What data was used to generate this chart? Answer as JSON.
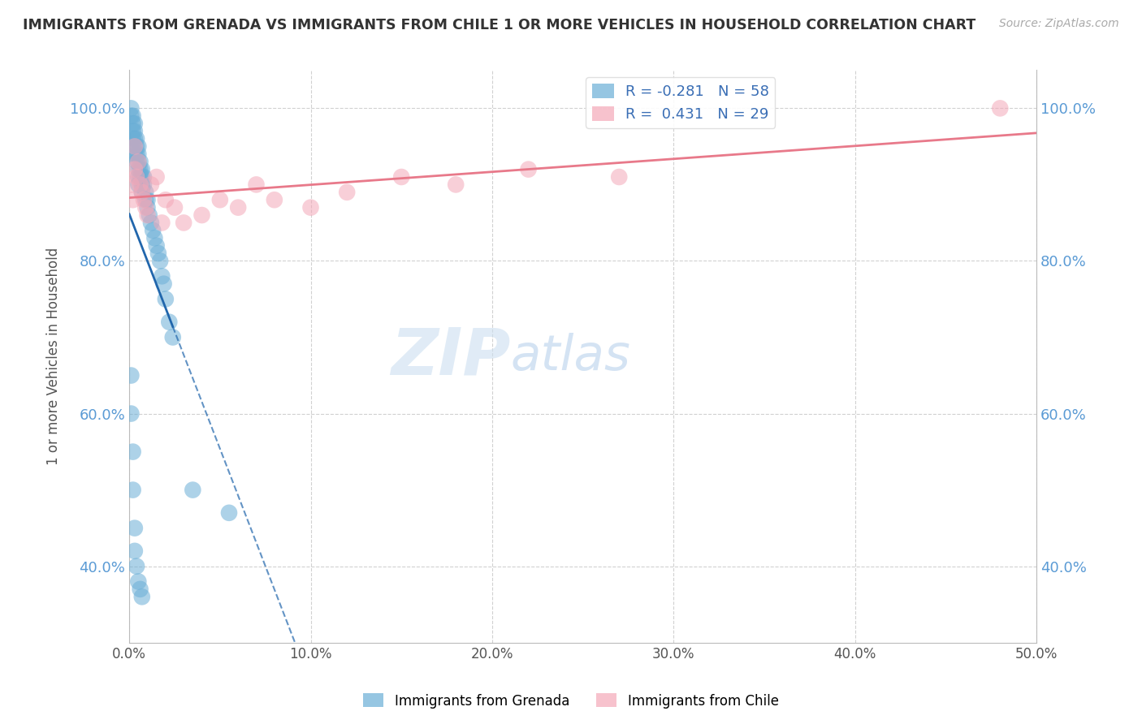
{
  "title": "IMMIGRANTS FROM GRENADA VS IMMIGRANTS FROM CHILE 1 OR MORE VEHICLES IN HOUSEHOLD CORRELATION CHART",
  "source": "Source: ZipAtlas.com",
  "ylabel": "1 or more Vehicles in Household",
  "xlim": [
    0.0,
    0.5
  ],
  "ylim": [
    0.3,
    1.05
  ],
  "xtick_labels": [
    "0.0%",
    "10.0%",
    "20.0%",
    "30.0%",
    "40.0%",
    "50.0%"
  ],
  "xtick_vals": [
    0.0,
    0.1,
    0.2,
    0.3,
    0.4,
    0.5
  ],
  "ytick_labels": [
    "40.0%",
    "60.0%",
    "80.0%",
    "100.0%"
  ],
  "ytick_vals": [
    0.4,
    0.6,
    0.8,
    1.0
  ],
  "grenada_color": "#6aaed6",
  "chile_color": "#f4a8b8",
  "grenada_R": -0.281,
  "grenada_N": 58,
  "chile_R": 0.431,
  "chile_N": 29,
  "background_color": "#ffffff",
  "watermark_zip": "ZIP",
  "watermark_atlas": "atlas",
  "grenada_x": [
    0.001,
    0.001,
    0.002,
    0.002,
    0.002,
    0.002,
    0.003,
    0.003,
    0.003,
    0.003,
    0.003,
    0.004,
    0.004,
    0.004,
    0.004,
    0.005,
    0.005,
    0.005,
    0.005,
    0.005,
    0.005,
    0.006,
    0.006,
    0.006,
    0.007,
    0.007,
    0.007,
    0.007,
    0.008,
    0.008,
    0.009,
    0.009,
    0.01,
    0.01,
    0.011,
    0.012,
    0.013,
    0.014,
    0.015,
    0.016,
    0.017,
    0.018,
    0.019,
    0.02,
    0.022,
    0.024,
    0.001,
    0.001,
    0.002,
    0.002,
    0.003,
    0.003,
    0.004,
    0.005,
    0.006,
    0.007,
    0.035,
    0.055
  ],
  "grenada_y": [
    1.0,
    0.99,
    0.99,
    0.98,
    0.97,
    0.96,
    0.98,
    0.97,
    0.96,
    0.95,
    0.94,
    0.96,
    0.95,
    0.94,
    0.93,
    0.95,
    0.94,
    0.93,
    0.92,
    0.91,
    0.9,
    0.93,
    0.92,
    0.91,
    0.92,
    0.91,
    0.9,
    0.89,
    0.91,
    0.9,
    0.89,
    0.88,
    0.88,
    0.87,
    0.86,
    0.85,
    0.84,
    0.83,
    0.82,
    0.81,
    0.8,
    0.78,
    0.77,
    0.75,
    0.72,
    0.7,
    0.65,
    0.6,
    0.55,
    0.5,
    0.45,
    0.42,
    0.4,
    0.38,
    0.37,
    0.36,
    0.5,
    0.47
  ],
  "chile_x": [
    0.001,
    0.002,
    0.003,
    0.003,
    0.004,
    0.005,
    0.006,
    0.007,
    0.008,
    0.009,
    0.01,
    0.012,
    0.015,
    0.018,
    0.02,
    0.025,
    0.03,
    0.04,
    0.05,
    0.06,
    0.07,
    0.08,
    0.1,
    0.12,
    0.15,
    0.18,
    0.22,
    0.27,
    0.48
  ],
  "chile_y": [
    0.9,
    0.88,
    0.92,
    0.95,
    0.91,
    0.93,
    0.9,
    0.89,
    0.88,
    0.87,
    0.86,
    0.9,
    0.91,
    0.85,
    0.88,
    0.87,
    0.85,
    0.86,
    0.88,
    0.87,
    0.9,
    0.88,
    0.87,
    0.89,
    0.91,
    0.9,
    0.92,
    0.91,
    1.0
  ]
}
